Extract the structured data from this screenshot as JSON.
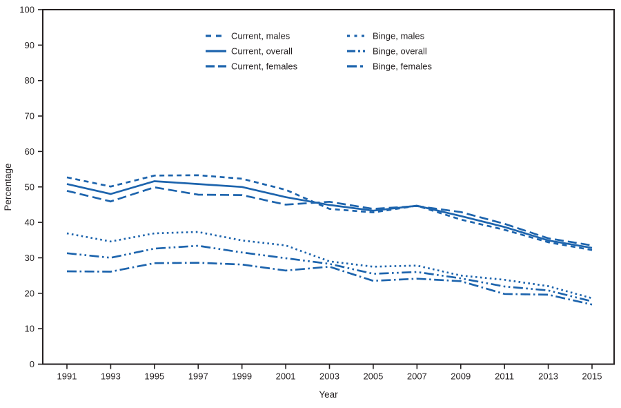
{
  "chart_data": {
    "type": "line",
    "title": "",
    "xlabel": "Year",
    "ylabel": "Percentage",
    "ylim": [
      0,
      100
    ],
    "yticks": [
      0,
      10,
      20,
      30,
      40,
      50,
      60,
      70,
      80,
      90,
      100
    ],
    "xticks": [
      1991,
      1993,
      1995,
      1997,
      1999,
      2001,
      2003,
      2005,
      2007,
      2009,
      2011,
      2013,
      2015
    ],
    "x": [
      1991,
      1993,
      1995,
      1997,
      1999,
      2001,
      2003,
      2005,
      2007,
      2009,
      2011,
      2013,
      2015
    ],
    "grid": false,
    "legend_position": "top-center",
    "legend_columns": [
      [
        "current_males",
        "current_overall",
        "current_females"
      ],
      [
        "binge_males",
        "binge_overall",
        "binge_females"
      ]
    ],
    "series": [
      {
        "id": "current_males",
        "label": "Current, males",
        "line_style": "medium-dash",
        "values": [
          52.7,
          50.1,
          53.2,
          53.3,
          52.3,
          49.2,
          43.8,
          42.8,
          44.7,
          40.8,
          37.9,
          34.4,
          32.2
        ]
      },
      {
        "id": "current_overall",
        "label": "Current, overall",
        "line_style": "solid",
        "values": [
          50.8,
          48.0,
          51.6,
          50.8,
          50.0,
          47.1,
          44.9,
          43.3,
          44.7,
          41.8,
          38.7,
          34.9,
          32.8
        ]
      },
      {
        "id": "current_females",
        "label": "Current, females",
        "line_style": "long-dash",
        "values": [
          48.9,
          45.9,
          49.9,
          47.8,
          47.7,
          45.0,
          45.8,
          43.8,
          44.6,
          42.9,
          39.6,
          35.5,
          33.5
        ]
      },
      {
        "id": "binge_males",
        "label": "Binge, males",
        "line_style": "dotted",
        "values": [
          36.9,
          34.6,
          36.9,
          37.3,
          34.9,
          33.5,
          29.0,
          27.5,
          27.8,
          25.0,
          23.8,
          22.0,
          18.6
        ]
      },
      {
        "id": "binge_overall",
        "label": "Binge, overall",
        "line_style": "long-dash-dot-dot",
        "values": [
          31.3,
          30.0,
          32.6,
          33.4,
          31.5,
          29.9,
          28.3,
          25.5,
          26.0,
          24.2,
          21.9,
          20.8,
          17.7
        ]
      },
      {
        "id": "binge_females",
        "label": "Binge, females",
        "line_style": "long-dash-dot",
        "values": [
          26.2,
          26.1,
          28.5,
          28.6,
          28.1,
          26.4,
          27.5,
          23.5,
          24.1,
          23.4,
          19.8,
          19.6,
          16.8
        ]
      }
    ],
    "colors": {
      "line": "#1d64ad",
      "axis": "#231f20",
      "background": "#ffffff"
    }
  }
}
